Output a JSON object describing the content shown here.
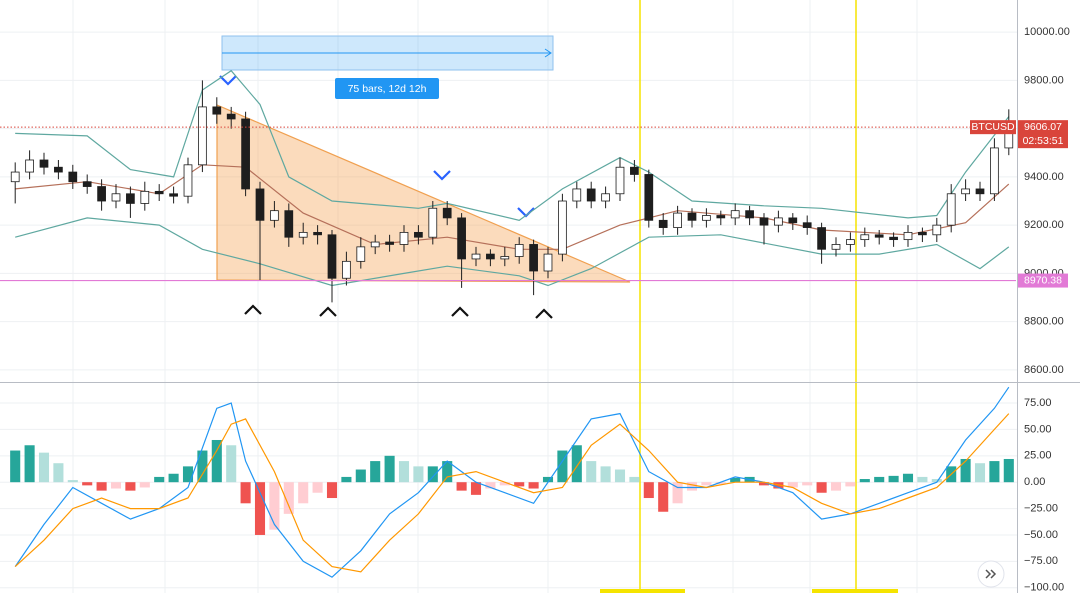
{
  "chart_data": [
    {
      "type": "candlestick",
      "symbol": "BTCUSD",
      "last_price": 9606.07,
      "countdown": "02:53:51",
      "level": 8970.38,
      "range_label": "75 bars, 12d 12h",
      "xlim": [
        -0.5,
        69.5
      ],
      "ylim": [
        8550,
        10133
      ],
      "grid": true,
      "yticks": [
        {
          "value": 8600,
          "label": "8600.00"
        },
        {
          "value": 8800,
          "label": "8800.00"
        },
        {
          "value": 9000,
          "label": "9000.00"
        },
        {
          "value": 9200,
          "label": "9200.00"
        },
        {
          "value": 9400,
          "label": "9400.00"
        },
        {
          "value": 9600,
          "label": "9600.00"
        },
        {
          "value": 9800,
          "label": "9800.00"
        },
        {
          "value": 10000,
          "label": "10000.00"
        }
      ],
      "colors": {
        "up": "#ffffff",
        "down": "#1e1e1e",
        "wick": "#1e1e1e",
        "last_price": "#d9453b",
        "level": "#e27ad6"
      },
      "open": [
        9380,
        9420,
        9470,
        9440,
        9420,
        9380,
        9360,
        9300,
        9330,
        9290,
        9340,
        9330,
        9320,
        9450,
        9690,
        9660,
        9640,
        9350,
        9220,
        9260,
        9150,
        9170,
        9160,
        8980,
        9050,
        9110,
        9130,
        9120,
        9170,
        9150,
        9270,
        9230,
        9060,
        9080,
        9060,
        9070,
        9120,
        9010,
        9080,
        9300,
        9350,
        9300,
        9330,
        9440,
        9410,
        9220,
        9190,
        9250,
        9220,
        9240,
        9230,
        9260,
        9230,
        9200,
        9230,
        9210,
        9190,
        9100,
        9120,
        9140,
        9160,
        9150,
        9140,
        9170,
        9160,
        9200,
        9330,
        9350,
        9330,
        9520
      ],
      "high": [
        9460,
        9510,
        9500,
        9470,
        9450,
        9410,
        9390,
        9370,
        9360,
        9380,
        9370,
        9360,
        9480,
        9800,
        9730,
        9690,
        9670,
        9380,
        9300,
        9290,
        9210,
        9200,
        9180,
        9090,
        9150,
        9160,
        9160,
        9200,
        9200,
        9300,
        9300,
        9250,
        9110,
        9100,
        9110,
        9150,
        9140,
        9110,
        9330,
        9380,
        9380,
        9360,
        9480,
        9470,
        9430,
        9250,
        9280,
        9270,
        9270,
        9260,
        9290,
        9280,
        9250,
        9260,
        9250,
        9240,
        9210,
        9150,
        9170,
        9190,
        9180,
        9170,
        9200,
        9190,
        9230,
        9370,
        9390,
        9380,
        9560,
        9680
      ],
      "low": [
        9290,
        9390,
        9410,
        9390,
        9350,
        9330,
        9260,
        9270,
        9230,
        9260,
        9300,
        9290,
        9290,
        9420,
        9620,
        9600,
        9320,
        8970,
        9190,
        9110,
        9120,
        9120,
        8880,
        8950,
        9020,
        9080,
        9090,
        9090,
        9120,
        9120,
        9200,
        8940,
        9030,
        9030,
        9030,
        9040,
        8910,
        8980,
        9050,
        9270,
        9270,
        9270,
        9300,
        9380,
        9190,
        9160,
        9160,
        9190,
        9190,
        9200,
        9200,
        9200,
        9120,
        9170,
        9180,
        9160,
        9040,
        9070,
        9090,
        9110,
        9120,
        9110,
        9110,
        9130,
        9130,
        9170,
        9300,
        9300,
        9300,
        9490
      ],
      "close": [
        9420,
        9470,
        9440,
        9420,
        9380,
        9360,
        9300,
        9330,
        9290,
        9340,
        9330,
        9320,
        9450,
        9690,
        9660,
        9640,
        9350,
        9220,
        9260,
        9150,
        9170,
        9160,
        8980,
        9050,
        9110,
        9130,
        9120,
        9170,
        9150,
        9270,
        9230,
        9060,
        9080,
        9060,
        9070,
        9120,
        9010,
        9080,
        9300,
        9350,
        9300,
        9330,
        9440,
        9410,
        9220,
        9190,
        9250,
        9220,
        9240,
        9230,
        9260,
        9230,
        9200,
        9230,
        9210,
        9190,
        9100,
        9120,
        9140,
        9160,
        9150,
        9140,
        9170,
        9160,
        9200,
        9330,
        9350,
        9330,
        9520,
        9606.07
      ],
      "series": [
        {
          "color": "#5fa8a0",
          "x": [
            0,
            5,
            8,
            11,
            13,
            15,
            17,
            19,
            22,
            28,
            30,
            35,
            38,
            42,
            44,
            47,
            52,
            56,
            62,
            64,
            66,
            69
          ],
          "values": [
            9580,
            9570,
            9430,
            9400,
            9760,
            9840,
            9700,
            9400,
            9300,
            9270,
            9290,
            9220,
            9350,
            9480,
            9420,
            9300,
            9280,
            9270,
            9230,
            9240,
            9420,
            9650
          ]
        },
        {
          "color": "#b5705a",
          "x": [
            0,
            5,
            10,
            13,
            16,
            20,
            25,
            30,
            35,
            38,
            42,
            46,
            52,
            56,
            62,
            66,
            69
          ],
          "values": [
            9350,
            9380,
            9330,
            9450,
            9440,
            9250,
            9120,
            9150,
            9100,
            9100,
            9200,
            9260,
            9230,
            9180,
            9160,
            9210,
            9370
          ]
        },
        {
          "color": "#5fa8a0",
          "x": [
            0,
            5,
            10,
            13,
            17,
            22,
            27,
            30,
            35,
            37,
            40,
            44,
            49,
            56,
            60,
            64,
            67,
            69
          ],
          "values": [
            9150,
            9230,
            9200,
            9100,
            9040,
            8950,
            9000,
            9030,
            8990,
            8950,
            9020,
            9150,
            9160,
            9080,
            9080,
            9120,
            9020,
            9110
          ]
        }
      ]
    },
    {
      "type": "macd",
      "xlim": [
        -0.5,
        69.5
      ],
      "ylim": [
        -105,
        94
      ],
      "grid": true,
      "yticks": [
        {
          "value": -100,
          "label": "−100.00"
        },
        {
          "value": -75,
          "label": "−75.00"
        },
        {
          "value": -50,
          "label": "−50.00"
        },
        {
          "value": -25,
          "label": "−25.00"
        },
        {
          "value": 0,
          "label": "0.00"
        },
        {
          "value": 25,
          "label": "25.00"
        },
        {
          "value": 50,
          "label": "50.00"
        },
        {
          "value": 75,
          "label": "75.00"
        }
      ],
      "colors": {
        "up_grow": "#26a69a",
        "up_fall": "#b2dfdb",
        "down_grow": "#ef5350",
        "down_fall": "#ffcdd2"
      },
      "histogram": [
        30,
        35,
        28,
        18,
        2,
        -3,
        -8,
        -6,
        -8,
        -5,
        5,
        8,
        15,
        30,
        40,
        35,
        -20,
        -50,
        -45,
        -30,
        -20,
        -10,
        -15,
        5,
        12,
        20,
        25,
        20,
        15,
        15,
        20,
        -8,
        -12,
        -6,
        -3,
        -4,
        -6,
        5,
        30,
        35,
        20,
        15,
        12,
        5,
        -15,
        -28,
        -20,
        -8,
        -3,
        -2,
        4,
        5,
        -3,
        -6,
        -5,
        -3,
        -10,
        -8,
        -4,
        3,
        5,
        6,
        8,
        5,
        3,
        15,
        22,
        18,
        20,
        22
      ],
      "series": [
        {
          "color": "#2196f3",
          "x": [
            0,
            2,
            4,
            6,
            8,
            10,
            12,
            14,
            15,
            16,
            18,
            20,
            22,
            24,
            26,
            28,
            30,
            32,
            34,
            36,
            38,
            40,
            42,
            44,
            46,
            48,
            50,
            52,
            54,
            56,
            58,
            60,
            62,
            64,
            66,
            68,
            69
          ],
          "values": [
            -80,
            -40,
            -5,
            -20,
            -35,
            -25,
            -5,
            70,
            75,
            20,
            -40,
            -75,
            -90,
            -65,
            -30,
            -10,
            20,
            0,
            -10,
            -20,
            20,
            60,
            65,
            10,
            -5,
            -5,
            5,
            0,
            -10,
            -35,
            -30,
            -20,
            -10,
            0,
            40,
            70,
            90
          ]
        },
        {
          "color": "#ff9800",
          "x": [
            0,
            2,
            4,
            6,
            8,
            10,
            12,
            14,
            15,
            16,
            18,
            20,
            22,
            24,
            26,
            28,
            30,
            32,
            34,
            36,
            38,
            40,
            42,
            44,
            46,
            48,
            50,
            52,
            54,
            56,
            58,
            60,
            62,
            64,
            66,
            68,
            69
          ],
          "values": [
            -80,
            -55,
            -25,
            -15,
            -25,
            -25,
            -15,
            30,
            55,
            60,
            10,
            -55,
            -80,
            -85,
            -55,
            -30,
            5,
            10,
            0,
            -10,
            -5,
            35,
            55,
            30,
            0,
            -5,
            0,
            0,
            -5,
            -20,
            -30,
            -25,
            -15,
            -5,
            20,
            50,
            65
          ]
        }
      ]
    }
  ]
}
